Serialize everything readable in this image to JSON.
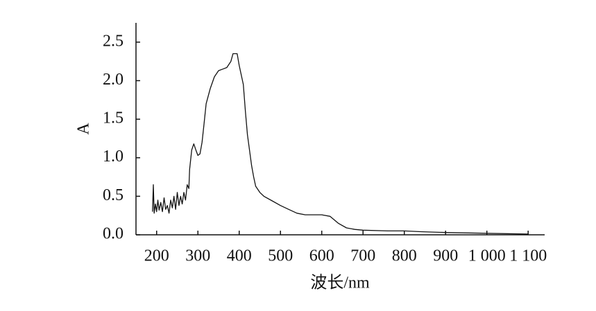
{
  "chart_data": {
    "type": "line",
    "xlabel": "波长/nm",
    "ylabel": "A",
    "x": [
      190,
      192,
      194,
      197,
      200,
      203,
      206,
      210,
      214,
      218,
      222,
      226,
      230,
      234,
      238,
      242,
      246,
      250,
      254,
      258,
      262,
      266,
      270,
      274,
      278,
      280,
      285,
      290,
      295,
      300,
      305,
      310,
      315,
      320,
      330,
      340,
      350,
      360,
      370,
      380,
      385,
      395,
      400,
      410,
      415,
      420,
      425,
      430,
      435,
      440,
      450,
      460,
      480,
      500,
      520,
      540,
      560,
      600,
      620,
      640,
      660,
      680,
      700,
      760,
      800,
      840,
      900,
      1000,
      1100
    ],
    "series": [
      {
        "color": "#111111",
        "values": [
          0.3,
          0.65,
          0.28,
          0.4,
          0.3,
          0.45,
          0.32,
          0.42,
          0.3,
          0.48,
          0.33,
          0.38,
          0.28,
          0.45,
          0.35,
          0.5,
          0.33,
          0.55,
          0.38,
          0.5,
          0.4,
          0.55,
          0.45,
          0.65,
          0.6,
          0.85,
          1.1,
          1.18,
          1.1,
          1.03,
          1.05,
          1.2,
          1.45,
          1.7,
          1.9,
          2.05,
          2.13,
          2.15,
          2.17,
          2.25,
          2.35,
          2.35,
          2.2,
          1.95,
          1.6,
          1.3,
          1.1,
          0.9,
          0.75,
          0.63,
          0.55,
          0.5,
          0.44,
          0.38,
          0.33,
          0.28,
          0.26,
          0.26,
          0.24,
          0.15,
          0.09,
          0.07,
          0.06,
          0.05,
          0.05,
          0.04,
          0.03,
          0.02,
          0.01
        ]
      }
    ],
    "xlim": [
      150,
      1140
    ],
    "ylim": [
      0,
      2.75
    ],
    "xticks": [
      200,
      300,
      400,
      500,
      600,
      700,
      800,
      900,
      {
        "value": 1000,
        "label": "1 000"
      },
      {
        "value": 1100,
        "label": "1 100"
      }
    ],
    "yticks": [
      {
        "value": 0.0,
        "label": "0.0"
      },
      0.5,
      {
        "value": 1.0,
        "label": "1.0"
      },
      1.5,
      {
        "value": 2.0,
        "label": "2.0"
      },
      2.5
    ]
  }
}
